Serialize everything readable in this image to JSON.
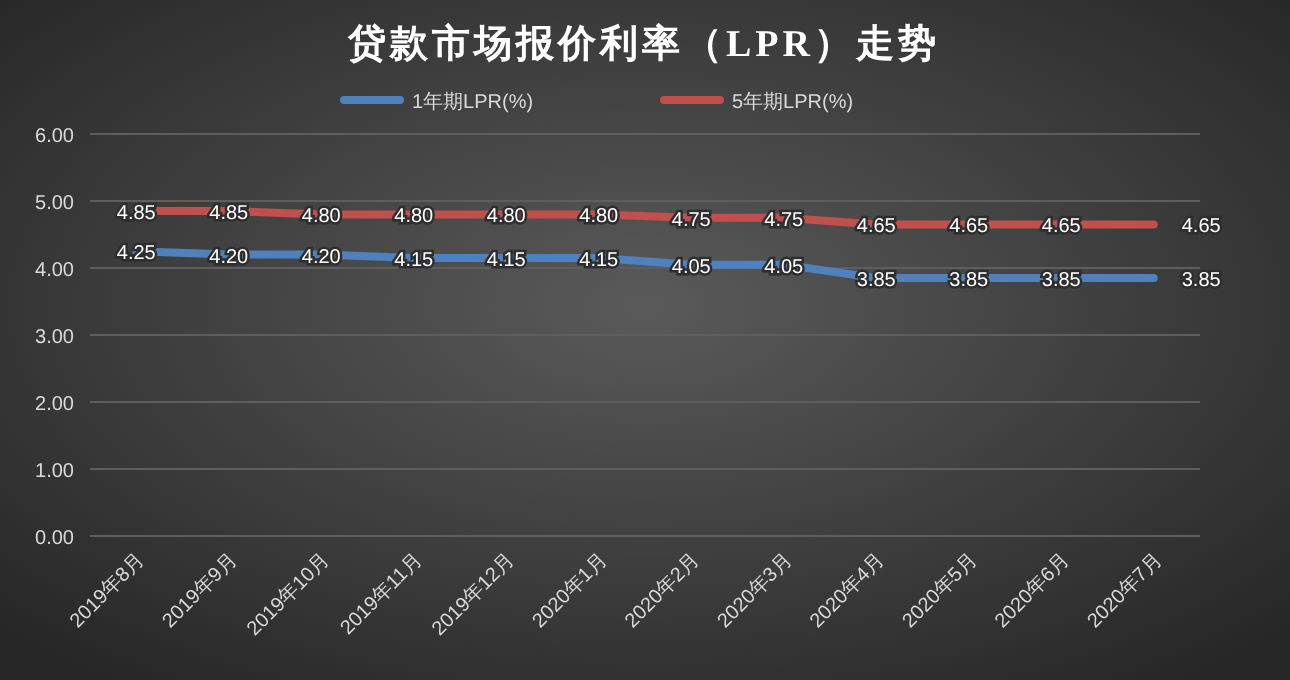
{
  "chart_data": {
    "type": "line",
    "title": "贷款市场报价利率（LPR）走势",
    "categories": [
      "2019年8月",
      "2019年9月",
      "2019年10月",
      "2019年11月",
      "2019年12月",
      "2020年1月",
      "2020年2月",
      "2020年3月",
      "2020年4月",
      "2020年5月",
      "2020年6月",
      "2020年7月"
    ],
    "series": [
      {
        "name": "1年期LPR(%)",
        "color": "#4f81bd",
        "values": [
          4.25,
          4.2,
          4.2,
          4.15,
          4.15,
          4.15,
          4.05,
          4.05,
          3.85,
          3.85,
          3.85,
          3.85
        ],
        "value_labels": [
          "4.25",
          "4.20",
          "4.20",
          "4.15",
          "4.15",
          "4.15",
          "4.05",
          "4.05",
          "3.85",
          "3.85",
          "3.85",
          "3.85"
        ]
      },
      {
        "name": "5年期LPR(%)",
        "color": "#c0504d",
        "values": [
          4.85,
          4.85,
          4.8,
          4.8,
          4.8,
          4.8,
          4.75,
          4.75,
          4.65,
          4.65,
          4.65,
          4.65
        ],
        "value_labels": [
          "4.85",
          "4.85",
          "4.80",
          "4.80",
          "4.80",
          "4.80",
          "4.75",
          "4.75",
          "4.65",
          "4.65",
          "4.65",
          "4.65"
        ]
      }
    ],
    "ylim": [
      0,
      6
    ],
    "yticks": [
      {
        "value": 0,
        "label": "0.00"
      },
      {
        "value": 1,
        "label": "1.00"
      },
      {
        "value": 2,
        "label": "2.00"
      },
      {
        "value": 3,
        "label": "3.00"
      },
      {
        "value": 4,
        "label": "4.00"
      },
      {
        "value": 5,
        "label": "5.00"
      },
      {
        "value": 6,
        "label": "6.00"
      }
    ],
    "grid": "y",
    "legend": "top",
    "marker": "none",
    "line_style": "solid"
  }
}
